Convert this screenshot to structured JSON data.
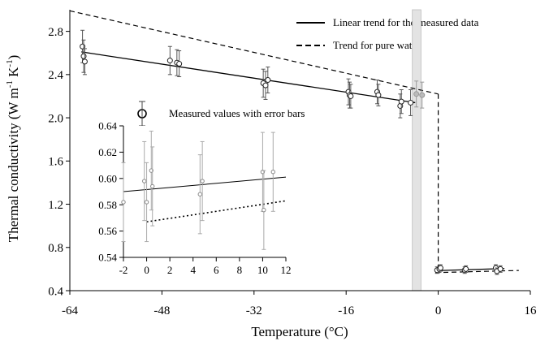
{
  "chart_data": [
    {
      "type": "scatter",
      "xlabel": "Temperature (°C)",
      "ylabel": "Thermal conductivity (W m",
      "ylabel_sup1": "-1",
      "ylabel_mid": " K",
      "ylabel_sup2": "-1",
      "ylabel_end": ")",
      "xlim": [
        -64,
        16
      ],
      "ylim": [
        0.4,
        3.0
      ],
      "x_ticks": [
        -64,
        -48,
        -32,
        -16,
        0,
        16
      ],
      "x_tick_labels": [
        "-64",
        "-48",
        "-32",
        "-16",
        "0",
        "16"
      ],
      "y_ticks": [
        0.4,
        0.8,
        1.2,
        1.6,
        2.0,
        2.4,
        2.8
      ],
      "y_tick_labels": [
        "0.4",
        "0.8",
        "1.2",
        "1.6",
        "2.0",
        "2.4",
        "2.8"
      ],
      "grid": false,
      "phase_band": [
        -4.5,
        -3.0
      ],
      "legend": {
        "placement": "top-right",
        "entries": [
          {
            "label": "Linear trend for the measured data",
            "style": "solid"
          },
          {
            "label": "Trend for pure water",
            "style": "dashed"
          },
          {
            "label": "Measured values with error bars",
            "style": "marker"
          }
        ]
      },
      "measured": [
        {
          "x": -61.8,
          "y": 2.66,
          "err": 0.15
        },
        {
          "x": -61.6,
          "y": 2.57,
          "err": 0.15
        },
        {
          "x": -61.4,
          "y": 2.52,
          "err": 0.12
        },
        {
          "x": -46.6,
          "y": 2.53,
          "err": 0.13
        },
        {
          "x": -45.4,
          "y": 2.51,
          "err": 0.12
        },
        {
          "x": -45.0,
          "y": 2.5,
          "err": 0.12
        },
        {
          "x": -30.4,
          "y": 2.32,
          "err": 0.13
        },
        {
          "x": -30.0,
          "y": 2.3,
          "err": 0.13
        },
        {
          "x": -29.6,
          "y": 2.35,
          "err": 0.12
        },
        {
          "x": -15.6,
          "y": 2.24,
          "err": 0.12
        },
        {
          "x": -15.4,
          "y": 2.21,
          "err": 0.12
        },
        {
          "x": -15.2,
          "y": 2.2,
          "err": 0.11
        },
        {
          "x": -10.6,
          "y": 2.24,
          "err": 0.11
        },
        {
          "x": -10.4,
          "y": 2.21,
          "err": 0.1
        },
        {
          "x": -6.6,
          "y": 2.11,
          "err": 0.11
        },
        {
          "x": -6.4,
          "y": 2.15,
          "err": 0.11
        },
        {
          "x": -4.8,
          "y": 2.14,
          "err": 0.12
        },
        {
          "x": -3.8,
          "y": 2.22,
          "err": 0.12,
          "shade": "gray"
        },
        {
          "x": -2.8,
          "y": 2.21,
          "err": 0.12,
          "shade": "gray"
        },
        {
          "x": -0.2,
          "y": 0.59,
          "err": 0.03
        },
        {
          "x": 0.2,
          "y": 0.6,
          "err": 0.03
        },
        {
          "x": 0.4,
          "y": 0.61,
          "err": 0.03
        },
        {
          "x": 4.6,
          "y": 0.59,
          "err": 0.03
        },
        {
          "x": 4.8,
          "y": 0.6,
          "err": 0.03
        },
        {
          "x": 10.0,
          "y": 0.61,
          "err": 0.03
        },
        {
          "x": 10.2,
          "y": 0.58,
          "err": 0.03
        },
        {
          "x": 10.8,
          "y": 0.6,
          "err": 0.03
        }
      ],
      "linear_trend_segments": [
        [
          [
            -62,
            2.61
          ],
          [
            -4,
            2.14
          ]
        ],
        [
          [
            -0.5,
            0.585
          ],
          [
            11.5,
            0.605
          ]
        ]
      ],
      "water_trend_segments": [
        [
          [
            -64,
            2.99
          ],
          [
            0,
            2.22
          ]
        ],
        [
          [
            0,
            2.22
          ],
          [
            0,
            0.57
          ]
        ],
        [
          [
            -0.5,
            0.567
          ],
          [
            14,
            0.587
          ]
        ]
      ]
    },
    {
      "type": "scatter",
      "inset": true,
      "xlim": [
        -2,
        12
      ],
      "ylim": [
        0.54,
        0.64
      ],
      "x_ticks": [
        -2,
        0,
        2,
        4,
        6,
        8,
        10,
        12
      ],
      "x_tick_labels": [
        "-2",
        "0",
        "2",
        "4",
        "6",
        "8",
        "10",
        "12"
      ],
      "y_ticks": [
        0.54,
        0.56,
        0.58,
        0.6,
        0.62,
        0.64
      ],
      "y_tick_labels": [
        "0.54",
        "0.56",
        "0.58",
        "0.60",
        "0.62",
        "0.64"
      ],
      "measured": [
        {
          "x": -2.0,
          "y": 0.582,
          "err": 0.03
        },
        {
          "x": -0.2,
          "y": 0.598,
          "err": 0.03
        },
        {
          "x": 0.0,
          "y": 0.582,
          "err": 0.03
        },
        {
          "x": 0.4,
          "y": 0.606,
          "err": 0.03
        },
        {
          "x": 0.5,
          "y": 0.594,
          "err": 0.03
        },
        {
          "x": 4.6,
          "y": 0.588,
          "err": 0.03
        },
        {
          "x": 4.8,
          "y": 0.598,
          "err": 0.03
        },
        {
          "x": 10.0,
          "y": 0.605,
          "err": 0.03
        },
        {
          "x": 10.1,
          "y": 0.576,
          "err": 0.03
        },
        {
          "x": 10.9,
          "y": 0.605,
          "err": 0.03
        }
      ],
      "linear_trend": [
        [
          -2,
          0.59
        ],
        [
          12,
          0.601
        ]
      ],
      "water_trend": [
        [
          0,
          0.567
        ],
        [
          12,
          0.583
        ]
      ]
    }
  ]
}
